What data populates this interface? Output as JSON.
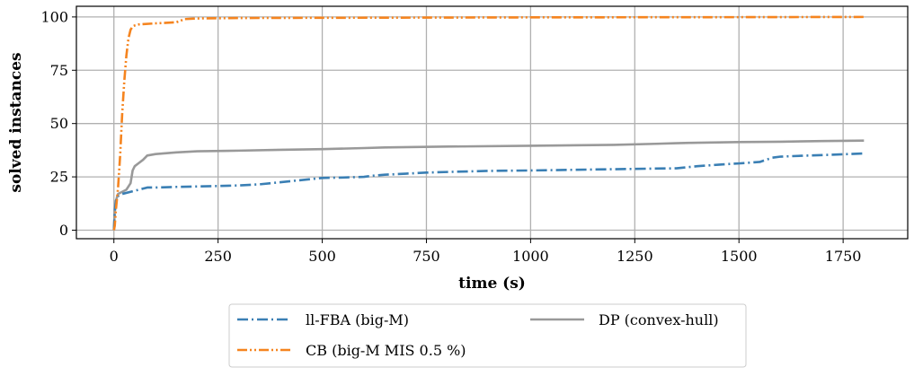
{
  "colors": {
    "ll_fba": "#3a7fb4",
    "cb": "#f5841f",
    "dp": "#999999",
    "grid": "#b0b0b0",
    "axis": "#000000"
  },
  "chart_data": {
    "type": "line",
    "xlabel": "time (s)",
    "ylabel": "solved instances",
    "xlim": [
      -90,
      1905
    ],
    "ylim": [
      -4,
      105
    ],
    "xticks": [
      0,
      250,
      500,
      750,
      1000,
      1250,
      1500,
      1750
    ],
    "xtick_labels": [
      "0",
      "250",
      "500",
      "750",
      "1000",
      "1250",
      "1500",
      "1750"
    ],
    "yticks": [
      0,
      25,
      50,
      75,
      100
    ],
    "ytick_labels": [
      "0",
      "25",
      "50",
      "75",
      "100"
    ],
    "grid": true,
    "legend_position": "below",
    "series": [
      {
        "name": "ll-FBA (big-M)",
        "color_key": "ll_fba",
        "linestyle": "dashdot",
        "x": [
          0,
          2,
          5,
          10,
          20,
          40,
          60,
          80,
          100,
          150,
          200,
          250,
          300,
          350,
          400,
          450,
          500,
          550,
          600,
          620,
          650,
          700,
          750,
          800,
          900,
          1000,
          1100,
          1200,
          1300,
          1350,
          1400,
          1450,
          1500,
          1550,
          1580,
          1600,
          1650,
          1700,
          1750,
          1800
        ],
        "y": [
          0,
          8,
          14,
          16,
          17,
          18,
          19,
          20,
          20,
          20.3,
          20.5,
          20.7,
          21,
          21.5,
          22.5,
          23.5,
          24.5,
          24.7,
          25,
          25.5,
          26,
          26.5,
          27,
          27.3,
          27.8,
          28,
          28.3,
          28.6,
          28.9,
          29,
          30,
          30.7,
          31.3,
          32,
          34,
          34.5,
          34.9,
          35.2,
          35.6,
          36
        ]
      },
      {
        "name": "CB (big-M MIS 0.5 %)",
        "color_key": "cb",
        "linestyle": "dashdotdot",
        "x": [
          0,
          2,
          5,
          10,
          15,
          20,
          25,
          30,
          35,
          40,
          45,
          50,
          60,
          100,
          150,
          170,
          200,
          300,
          500,
          1000,
          1500,
          1800
        ],
        "y": [
          0,
          2,
          10,
          20,
          35,
          55,
          70,
          82,
          90,
          94,
          95.5,
          96,
          96.5,
          97,
          97.5,
          99,
          99.3,
          99.5,
          99.6,
          99.8,
          99.9,
          100
        ]
      },
      {
        "name": "DP (convex-hull)",
        "color_key": "dp",
        "linestyle": "solid",
        "x": [
          0,
          2,
          5,
          10,
          20,
          30,
          40,
          45,
          50,
          60,
          70,
          80,
          100,
          150,
          200,
          300,
          400,
          500,
          600,
          650,
          800,
          1000,
          1200,
          1300,
          1350,
          1400,
          1500,
          1600,
          1700,
          1800
        ],
        "y": [
          0,
          10,
          14,
          17,
          18,
          19,
          22,
          28,
          30,
          31.5,
          33,
          35,
          35.7,
          36.5,
          37,
          37.3,
          37.7,
          38,
          38.5,
          38.8,
          39.2,
          39.6,
          40,
          40.5,
          40.8,
          41,
          41.3,
          41.5,
          41.8,
          42
        ]
      }
    ]
  }
}
